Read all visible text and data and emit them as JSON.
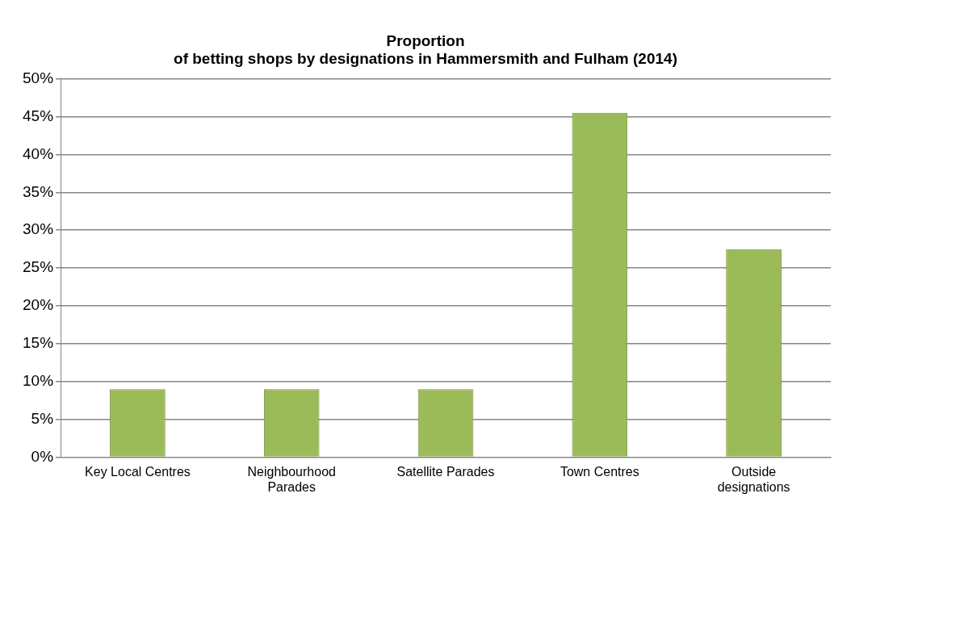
{
  "chart_data": {
    "type": "bar",
    "title": "Proportion\nof betting shops by designations in Hammersmith and Fulham (2014)",
    "categories": [
      "Key Local Centres",
      "Neighbourhood Parades",
      "Satellite Parades",
      "Town Centres",
      "Outside designations"
    ],
    "values": [
      9,
      9,
      9,
      45.5,
      27.5
    ],
    "color": "#9bbb59",
    "ylim": [
      0,
      50
    ],
    "yticks": [
      {
        "value": 0,
        "label": "0%"
      },
      {
        "value": 5,
        "label": "5%"
      },
      {
        "value": 10,
        "label": "10%"
      },
      {
        "value": 15,
        "label": "15%"
      },
      {
        "value": 20,
        "label": "20%"
      },
      {
        "value": 25,
        "label": "25%"
      },
      {
        "value": 30,
        "label": "30%"
      },
      {
        "value": 35,
        "label": "35%"
      },
      {
        "value": 40,
        "label": "40%"
      },
      {
        "value": 45,
        "label": "45%"
      },
      {
        "value": 50,
        "label": "50%"
      }
    ],
    "grid": "y",
    "legend": false
  }
}
